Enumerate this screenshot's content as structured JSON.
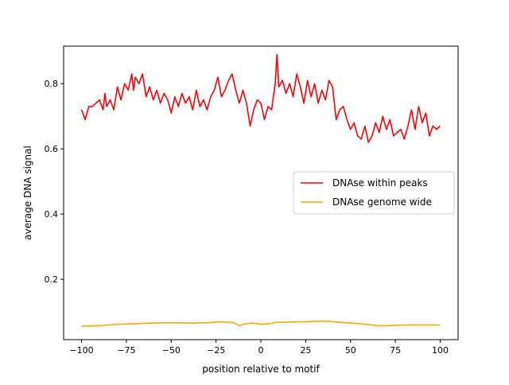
{
  "chart_data": {
    "type": "line",
    "title": "",
    "xlabel": "position relative to motif",
    "ylabel": "average DNA signal",
    "xlim": [
      -110,
      110
    ],
    "ylim": [
      0.015,
      0.915
    ],
    "xticks": [
      -100,
      -75,
      -50,
      -25,
      0,
      25,
      50,
      75,
      100
    ],
    "yticks": [
      0.2,
      0.4,
      0.6,
      0.8
    ],
    "xtick_labels": [
      "−100",
      "−75",
      "−50",
      "−25",
      "0",
      "25",
      "50",
      "75",
      "100"
    ],
    "ytick_labels": [
      "0.2",
      "0.4",
      "0.6",
      "0.8"
    ],
    "grid": false,
    "legend_position": "center-right",
    "series": [
      {
        "name": "DNAse within peaks",
        "color": "#ff0000",
        "x": [
          -100,
          -98,
          -96,
          -94,
          -92,
          -90,
          -88,
          -87,
          -86,
          -84,
          -82,
          -80,
          -78,
          -76,
          -74,
          -72,
          -71,
          -70,
          -68,
          -66,
          -64,
          -62,
          -60,
          -58,
          -56,
          -54,
          -52,
          -50,
          -48,
          -46,
          -44,
          -42,
          -40,
          -38,
          -36,
          -34,
          -32,
          -30,
          -28,
          -26,
          -24,
          -22,
          -20,
          -18,
          -16,
          -14,
          -12,
          -10,
          -8,
          -6,
          -4,
          -2,
          0,
          2,
          4,
          6,
          8,
          9,
          10,
          12,
          14,
          16,
          18,
          20,
          22,
          24,
          26,
          28,
          30,
          32,
          34,
          36,
          38,
          40,
          42,
          44,
          46,
          48,
          50,
          52,
          54,
          56,
          58,
          60,
          62,
          64,
          66,
          68,
          70,
          72,
          74,
          76,
          78,
          80,
          82,
          84,
          86,
          88,
          90,
          92,
          94,
          96,
          98,
          100
        ],
        "values": [
          0.72,
          0.69,
          0.73,
          0.73,
          0.74,
          0.75,
          0.72,
          0.77,
          0.73,
          0.75,
          0.72,
          0.79,
          0.75,
          0.8,
          0.78,
          0.83,
          0.78,
          0.82,
          0.8,
          0.83,
          0.76,
          0.79,
          0.75,
          0.78,
          0.74,
          0.77,
          0.75,
          0.71,
          0.76,
          0.73,
          0.77,
          0.74,
          0.76,
          0.72,
          0.78,
          0.73,
          0.75,
          0.72,
          0.76,
          0.78,
          0.82,
          0.76,
          0.78,
          0.81,
          0.83,
          0.78,
          0.74,
          0.78,
          0.74,
          0.67,
          0.72,
          0.75,
          0.74,
          0.69,
          0.73,
          0.72,
          0.8,
          0.89,
          0.79,
          0.81,
          0.77,
          0.8,
          0.76,
          0.83,
          0.79,
          0.74,
          0.81,
          0.76,
          0.8,
          0.74,
          0.78,
          0.75,
          0.81,
          0.79,
          0.69,
          0.72,
          0.73,
          0.69,
          0.66,
          0.68,
          0.64,
          0.63,
          0.67,
          0.62,
          0.64,
          0.68,
          0.65,
          0.7,
          0.66,
          0.69,
          0.64,
          0.65,
          0.66,
          0.63,
          0.67,
          0.72,
          0.66,
          0.73,
          0.68,
          0.71,
          0.64,
          0.67,
          0.66,
          0.67
        ]
      },
      {
        "name": "DNAse genome wide",
        "color": "#ffa500",
        "x": [
          -100,
          -90,
          -80,
          -70,
          -60,
          -50,
          -40,
          -30,
          -22,
          -15,
          -12,
          -10,
          -5,
          0,
          5,
          8,
          15,
          25,
          35,
          40,
          45,
          50,
          60,
          65,
          70,
          80,
          90,
          100
        ],
        "values": [
          0.056,
          0.058,
          0.062,
          0.064,
          0.066,
          0.067,
          0.066,
          0.067,
          0.07,
          0.067,
          0.058,
          0.062,
          0.066,
          0.062,
          0.064,
          0.068,
          0.069,
          0.07,
          0.072,
          0.07,
          0.068,
          0.066,
          0.061,
          0.058,
          0.058,
          0.06,
          0.06,
          0.06
        ]
      }
    ]
  }
}
